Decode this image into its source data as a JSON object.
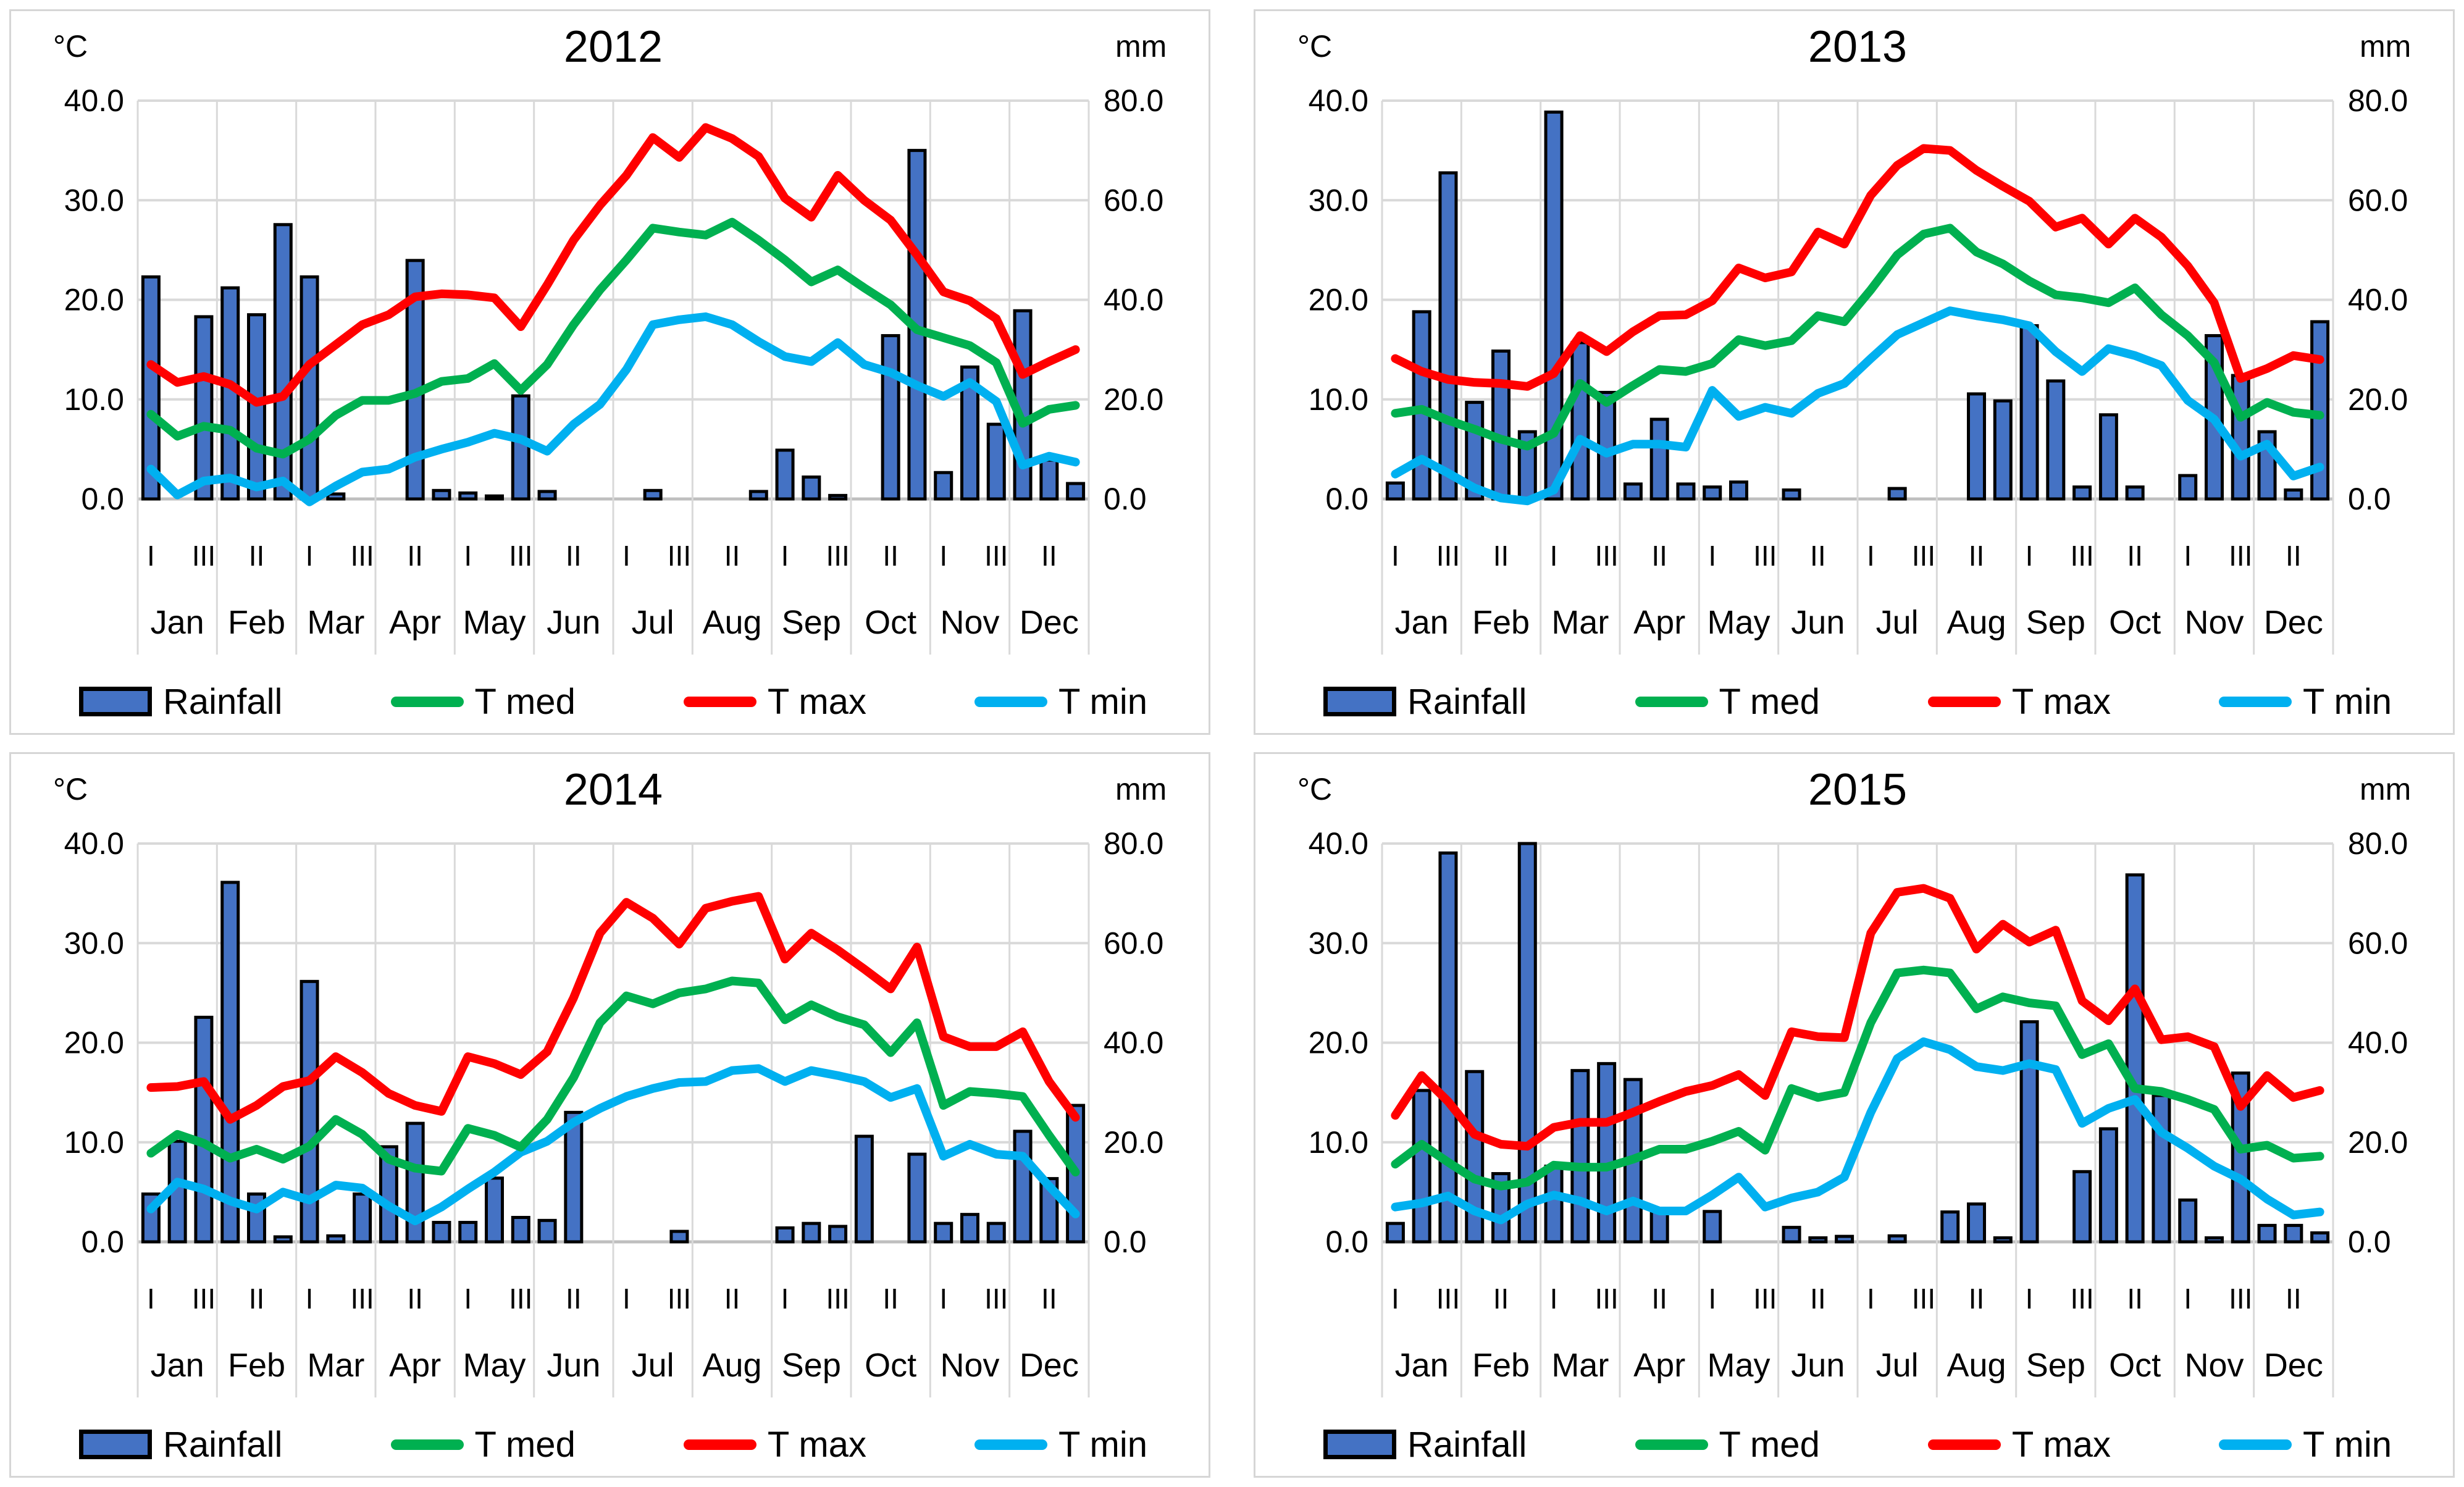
{
  "page": {
    "background": "#ffffff"
  },
  "colors": {
    "rainfall_fill": "#4472C4",
    "rainfall_border": "#000000",
    "t_med": "#00B050",
    "t_max": "#FF0000",
    "t_min": "#00B0F0",
    "gridline": "#D9D9D9",
    "axis_line": "#BFBFBF",
    "text": "#000000"
  },
  "axes": {
    "left_title": "°C",
    "right_title": "mm",
    "left_ticks": [
      "40.0",
      "30.0",
      "20.0",
      "10.0",
      "0.0"
    ],
    "right_ticks": [
      "80.0",
      "60.0",
      "40.0",
      "20.0",
      "0.0"
    ],
    "left_max": 40,
    "right_max": 80
  },
  "months": [
    "Jan",
    "Feb",
    "Mar",
    "Apr",
    "May",
    "Jun",
    "Jul",
    "Aug",
    "Sep",
    "Oct",
    "Nov",
    "Dec"
  ],
  "decade_label_cycle": [
    "I",
    "III",
    "II"
  ],
  "legend": [
    {
      "key": "rainfall",
      "label": "Rainfall",
      "swatch": "bar"
    },
    {
      "key": "t_med",
      "label": "T med",
      "swatch": "line"
    },
    {
      "key": "t_max",
      "label": "T max",
      "swatch": "line"
    },
    {
      "key": "t_min",
      "label": "T min",
      "swatch": "line"
    }
  ],
  "chart_data": {
    "type": "bar+line combo, 4 panels",
    "x_unit": "month decades (I,II,III per month, 36 points per year)",
    "bar_series_unit": "mm (right axis, 0-80)",
    "line_series_unit": "°C (left axis, 0-40)",
    "grid": "horizontal gridlines every 10°C / 20mm, vertical gridline at each month boundary",
    "legend_position": "bottom"
  },
  "charts": [
    {
      "title": "2012",
      "rainfall_mm": [
        44.6,
        0,
        36.6,
        42.4,
        37,
        55.1,
        44.6,
        1,
        0,
        0,
        47.9,
        1.7,
        1.2,
        0.6,
        20.7,
        1.5,
        0,
        0,
        0,
        1.7,
        0,
        0,
        0,
        1.5,
        9.8,
        4.4,
        0.7,
        0,
        32.8,
        70,
        5.3,
        26.5,
        15,
        37.8,
        7.8,
        3.1
      ],
      "t_max_c": [
        13.5,
        11.7,
        12.3,
        11.5,
        9.7,
        10.3,
        13.5,
        15.5,
        17.5,
        18.5,
        20.3,
        20.6,
        20.5,
        20.2,
        17.3,
        21.5,
        26,
        29.5,
        32.5,
        36.3,
        34.3,
        37.3,
        36.2,
        34.4,
        30.2,
        28.3,
        32.5,
        30,
        28,
        24.5,
        20.8,
        19.9,
        18.1,
        12.5,
        13.8,
        15
      ],
      "t_med_c": [
        8.5,
        6.3,
        7.3,
        6.9,
        5.1,
        4.5,
        6,
        8.4,
        9.9,
        9.9,
        10.6,
        11.8,
        12.1,
        13.6,
        10.9,
        13.5,
        17.5,
        21,
        24,
        27.2,
        26.8,
        26.5,
        27.8,
        26,
        24,
        21.8,
        23,
        21.2,
        19.5,
        17,
        16.2,
        15.4,
        13.7,
        7.6,
        9,
        9.4
      ],
      "t_min_c": [
        3,
        0.4,
        1.8,
        2.1,
        1.2,
        1.8,
        -0.3,
        1.3,
        2.7,
        3,
        4.2,
        5,
        5.7,
        6.6,
        6,
        4.8,
        7.5,
        9.5,
        13,
        17.5,
        18,
        18.3,
        17.5,
        15.8,
        14.3,
        13.8,
        15.7,
        13.5,
        12.7,
        11.4,
        10.3,
        11.7,
        9.8,
        3.4,
        4.3,
        3.7
      ]
    },
    {
      "title": "2013",
      "rainfall_mm": [
        3.2,
        37.6,
        65.5,
        19.4,
        29.7,
        13.5,
        77.7,
        31.4,
        21.4,
        3,
        16,
        3,
        2.4,
        3.4,
        0,
        1.8,
        0,
        0,
        0,
        2.1,
        0,
        0,
        21.1,
        19.7,
        34.8,
        23.7,
        2.4,
        16.9,
        2.4,
        0,
        4.7,
        32.8,
        24.8,
        13.5,
        1.8,
        35.6
      ],
      "t_max_c": [
        14.1,
        12.8,
        12,
        11.7,
        11.6,
        11.3,
        12.6,
        16.4,
        14.8,
        16.8,
        18.4,
        18.5,
        19.9,
        23.2,
        22.2,
        22.8,
        26.8,
        25.6,
        30.5,
        33.5,
        35.2,
        35,
        33,
        31.4,
        29.9,
        27.3,
        28.2,
        25.6,
        28.2,
        26.3,
        23.4,
        19.7,
        12.1,
        13.1,
        14.4,
        14
      ],
      "t_med_c": [
        8.6,
        9,
        7.9,
        7,
        6,
        5.3,
        6.6,
        11.6,
        9.7,
        11.4,
        13,
        12.8,
        13.6,
        16,
        15.4,
        15.9,
        18.4,
        17.8,
        21,
        24.5,
        26.6,
        27.2,
        24.8,
        23.6,
        21.9,
        20.5,
        20.2,
        19.7,
        21.2,
        18.5,
        16.4,
        13.7,
        8.2,
        9.7,
        8.7,
        8.4
      ],
      "t_min_c": [
        2.5,
        4,
        2.6,
        1.1,
        0.1,
        -0.2,
        0.9,
        6,
        4.6,
        5.5,
        5.5,
        5.2,
        10.9,
        8.3,
        9.2,
        8.6,
        10.6,
        11.6,
        14.1,
        16.5,
        17.7,
        18.9,
        18.4,
        18,
        17.4,
        14.8,
        12.8,
        15.1,
        14.4,
        13.4,
        9.9,
        8,
        4.3,
        5.5,
        2.3,
        3.2
      ]
    },
    {
      "title": "2014",
      "rainfall_mm": [
        9.6,
        20.2,
        45.1,
        72.2,
        9.6,
        1,
        52.3,
        1.2,
        9.6,
        19.1,
        23.8,
        3.9,
        3.9,
        12.8,
        4.9,
        4.3,
        26,
        0,
        0,
        0,
        2.1,
        0,
        0,
        0,
        2.8,
        3.7,
        3.1,
        21.2,
        0,
        17.6,
        3.7,
        5.5,
        3.7,
        22.2,
        12.7,
        27.4
      ],
      "t_max_c": [
        15.5,
        15.6,
        16.1,
        12.3,
        13.7,
        15.6,
        16.2,
        18.6,
        17,
        14.9,
        13.7,
        13.1,
        18.6,
        17.9,
        16.8,
        19.1,
        24.5,
        31,
        34.1,
        32.5,
        29.9,
        33.5,
        34.2,
        34.7,
        28.4,
        31,
        29.3,
        27.4,
        25.4,
        29.6,
        20.6,
        19.6,
        19.6,
        21.1,
        16.1,
        12.5
      ],
      "t_med_c": [
        8.9,
        10.8,
        9.9,
        8.4,
        9.3,
        8.3,
        9.6,
        12.3,
        10.8,
        8.3,
        7.4,
        7.1,
        11.4,
        10.7,
        9.5,
        12.3,
        16.5,
        22,
        24.7,
        23.9,
        25,
        25.4,
        26.2,
        26,
        22.3,
        23.8,
        22.6,
        21.8,
        19,
        22,
        13.7,
        15.1,
        14.9,
        14.6,
        10.7,
        7
      ],
      "t_min_c": [
        3.3,
        6,
        5.3,
        4.1,
        3.3,
        5,
        4.2,
        5.7,
        5.4,
        3.6,
        2.1,
        3.5,
        5.3,
        7,
        9,
        10.1,
        12,
        13.4,
        14.6,
        15.4,
        16,
        16.1,
        17.2,
        17.4,
        16.1,
        17.2,
        16.7,
        16.1,
        14.5,
        15.4,
        8.6,
        9.8,
        8.8,
        8.6,
        5.6,
        2.8
      ]
    },
    {
      "title": "2015",
      "rainfall_mm": [
        3.7,
        30.4,
        78.1,
        34.2,
        13.7,
        80,
        15.2,
        34.4,
        35.8,
        32.6,
        6.4,
        0,
        6.1,
        0,
        0,
        2.9,
        0.8,
        1.1,
        0,
        1.2,
        0,
        6,
        7.6,
        0.8,
        44.2,
        0,
        14.1,
        22.7,
        73.7,
        29.4,
        8.4,
        0.8,
        33.9,
        3.3,
        3.3,
        1.8
      ],
      "t_max_c": [
        12.7,
        16.7,
        14.1,
        10.8,
        9.8,
        9.6,
        11.5,
        12,
        12,
        13,
        14.1,
        15.1,
        15.7,
        16.8,
        14.7,
        21.1,
        20.6,
        20.5,
        31,
        35.1,
        35.5,
        34.5,
        29.4,
        31.9,
        30.1,
        31.3,
        24.2,
        22.2,
        25.4,
        20.3,
        20.6,
        19.6,
        13.6,
        16.7,
        14.5,
        15.2
      ],
      "t_med_c": [
        7.8,
        9.8,
        8,
        6.3,
        5.6,
        6,
        7.7,
        7.5,
        7.5,
        8.3,
        9.3,
        9.3,
        10.1,
        11.1,
        9.2,
        15.4,
        14.5,
        15,
        22,
        27,
        27.3,
        27,
        23.4,
        24.6,
        24,
        23.7,
        18.8,
        19.9,
        15.4,
        15.1,
        14.3,
        13.3,
        9.3,
        9.7,
        8.4,
        8.6
      ],
      "t_min_c": [
        3.5,
        3.9,
        4.6,
        3.1,
        2.2,
        3.8,
        4.7,
        4.1,
        3.1,
        4.1,
        3.1,
        3.1,
        4.7,
        6.5,
        3.5,
        4.4,
        5,
        6.5,
        13,
        18.4,
        20.1,
        19.3,
        17.6,
        17.2,
        17.9,
        17.3,
        11.9,
        13.4,
        14.3,
        11,
        9.4,
        7.6,
        6.3,
        4.3,
        2.7,
        3
      ]
    }
  ]
}
